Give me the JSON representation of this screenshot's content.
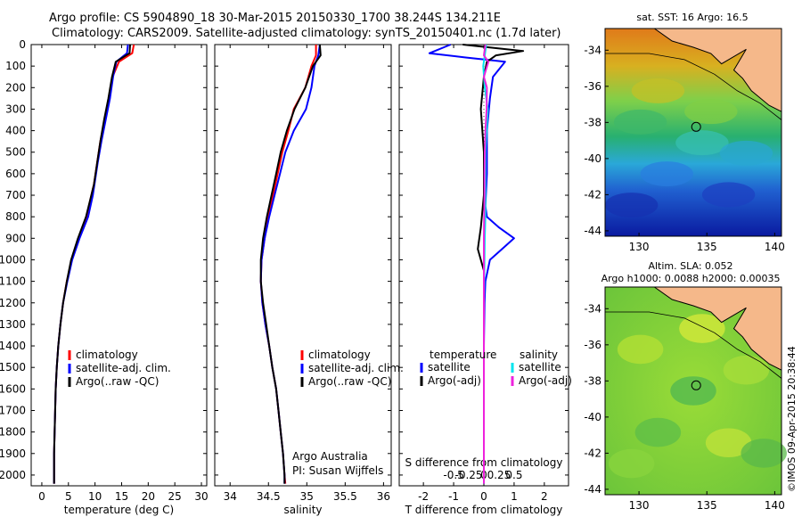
{
  "header": {
    "line1": "Argo profile: CS 5904890_18 30-Mar-2015 20150330_1700 38.244S 134.211E",
    "line2": "Climatology: CARS2009. Satellite-adjusted climatology: synTS_20150401.nc (1.7d later)"
  },
  "colors": {
    "climatology": "#ff0000",
    "satellite": "#0000ff",
    "argo": "#000000",
    "satellite_s": "#00e5ee",
    "argo_s": "#ee22dd",
    "land": "#f5b88a",
    "coast": "#000000"
  },
  "legend_a": {
    "items": [
      "climatology",
      "satellite-adj. clim.",
      "Argo(..raw -QC)"
    ]
  },
  "legend_c": {
    "temperature": "temperature",
    "salinity": "salinity",
    "t_items": [
      "satellite",
      "Argo(-adj)"
    ],
    "s_items": [
      "satellite",
      "Argo(-adj)"
    ]
  },
  "credit": {
    "line1": "Argo Australia",
    "line2": "PI: Susan Wijffels"
  },
  "map1": {
    "title": "sat. SST: 16 Argo: 16.5",
    "ylabels": [
      "-34",
      "-36",
      "-38",
      "-40",
      "-42",
      "-44"
    ],
    "xlabels": [
      "130",
      "135",
      "140"
    ]
  },
  "map2": {
    "title1": "Altim. SLA: 0.052",
    "title2": "Argo h1000: 0.0088 h2000: 0.00035",
    "ylabels": [
      "-34",
      "-36",
      "-38",
      "-40",
      "-42",
      "-44"
    ],
    "xlabels": [
      "130",
      "135",
      "140"
    ]
  },
  "watermark": "©IMOS 09-Apr-2015 20:38:44",
  "chart_data": [
    {
      "type": "line",
      "xlabel": "temperature (deg C)",
      "ylabel": "",
      "xlim": [
        -2,
        31
      ],
      "ylim": [
        2050,
        0
      ],
      "xticks": [
        "0",
        "5",
        "10",
        "15",
        "20",
        "25",
        "30"
      ],
      "yticks": [
        "0",
        "100",
        "200",
        "300",
        "400",
        "500",
        "600",
        "700",
        "800",
        "900",
        "1000",
        "1100",
        "1200",
        "1300",
        "1400",
        "1500",
        "1600",
        "1700",
        "1800",
        "1900",
        "2000"
      ],
      "series": [
        {
          "name": "climatology",
          "color": "#ff0000",
          "x": [
            17.3,
            17.0,
            14.5,
            13.3,
            12.6,
            11.8,
            11.0,
            10.4,
            9.8,
            9.3,
            8.4,
            6.9,
            5.6,
            4.7,
            4.0,
            3.5,
            3.1,
            2.8,
            2.6,
            2.5,
            2.4,
            2.3,
            2.3
          ],
          "y": [
            0,
            40,
            80,
            150,
            250,
            350,
            450,
            550,
            650,
            700,
            800,
            900,
            1000,
            1100,
            1200,
            1300,
            1400,
            1500,
            1600,
            1700,
            1800,
            1900,
            2040
          ]
        },
        {
          "name": "satellite-adj. clim.",
          "color": "#0000ff",
          "x": [
            16.2,
            16.0,
            14.0,
            13.4,
            12.8,
            12.0,
            11.2,
            10.5,
            9.9,
            9.6,
            8.7,
            7.1,
            5.7,
            4.8,
            4.0,
            3.5,
            3.1,
            2.8,
            2.6,
            2.5,
            2.4,
            2.3,
            2.3
          ],
          "y": [
            0,
            40,
            80,
            150,
            250,
            350,
            450,
            550,
            650,
            700,
            800,
            900,
            1000,
            1100,
            1200,
            1300,
            1400,
            1500,
            1600,
            1700,
            1800,
            1900,
            2040
          ]
        },
        {
          "name": "Argo(..raw -QC)",
          "color": "#000000",
          "x": [
            16.6,
            16.5,
            13.9,
            13.2,
            12.5,
            11.7,
            11.0,
            10.4,
            9.8,
            9.3,
            8.3,
            6.8,
            5.5,
            4.7,
            4.0,
            3.5,
            3.1,
            2.8,
            2.6,
            2.5,
            2.4,
            2.3,
            2.3
          ],
          "y": [
            0,
            40,
            80,
            150,
            250,
            350,
            450,
            550,
            650,
            700,
            800,
            900,
            1000,
            1100,
            1200,
            1300,
            1400,
            1500,
            1600,
            1700,
            1800,
            1900,
            2040
          ]
        }
      ]
    },
    {
      "type": "line",
      "xlabel": "salinity",
      "ylabel": "",
      "xlim": [
        33.8,
        36.1
      ],
      "ylim": [
        2050,
        0
      ],
      "xticks": [
        "34",
        "34.5",
        "35",
        "35.5",
        "36"
      ],
      "series": [
        {
          "name": "climatology",
          "color": "#ff0000",
          "x": [
            35.12,
            35.12,
            35.06,
            34.98,
            34.83,
            34.76,
            34.68,
            34.62,
            34.56,
            34.5,
            34.45,
            34.41,
            34.4,
            34.42,
            34.46,
            34.51,
            34.55,
            34.6,
            34.63,
            34.66,
            34.69,
            34.71,
            34.72
          ],
          "y": [
            0,
            50,
            100,
            200,
            300,
            400,
            500,
            600,
            700,
            800,
            900,
            1000,
            1100,
            1200,
            1300,
            1400,
            1500,
            1600,
            1700,
            1800,
            1900,
            2000,
            2040
          ]
        },
        {
          "name": "satellite-adj. clim.",
          "color": "#0000ff",
          "x": [
            35.17,
            35.15,
            35.1,
            35.06,
            34.99,
            34.83,
            34.72,
            34.65,
            34.58,
            34.51,
            34.45,
            34.41,
            34.4,
            34.42,
            34.46,
            34.51,
            34.55,
            34.6,
            34.63,
            34.66,
            34.69,
            34.71,
            34.71
          ],
          "y": [
            0,
            50,
            100,
            200,
            300,
            400,
            500,
            600,
            700,
            800,
            900,
            1000,
            1100,
            1200,
            1300,
            1400,
            1500,
            1600,
            1700,
            1800,
            1900,
            2000,
            2040
          ]
        },
        {
          "name": "Argo(..raw -QC)",
          "color": "#000000",
          "x": [
            35.17,
            35.18,
            35.08,
            34.98,
            34.84,
            34.74,
            34.66,
            34.6,
            34.54,
            34.48,
            34.43,
            34.4,
            34.4,
            34.43,
            34.47,
            34.51,
            34.55,
            34.6,
            34.63,
            34.66,
            34.69,
            34.71,
            34.71
          ],
          "y": [
            0,
            50,
            100,
            200,
            300,
            400,
            500,
            600,
            700,
            800,
            900,
            1000,
            1100,
            1200,
            1300,
            1400,
            1500,
            1600,
            1700,
            1800,
            1900,
            2000,
            2040
          ]
        }
      ]
    },
    {
      "type": "line",
      "xlabel": "T difference from climatology",
      "secondary_xlabel": "S difference from climatology",
      "xlim": [
        -2.8,
        2.8
      ],
      "ylim": [
        2050,
        0
      ],
      "xticks": [
        "-2",
        "-1",
        "0",
        "1",
        "2"
      ],
      "secondary_xticks": [
        "-0.5",
        "-0.25",
        "0",
        "0.25",
        "0.5"
      ],
      "series": [
        {
          "name": "T satellite",
          "color": "#0000ff",
          "x": [
            -1.1,
            -1.8,
            -0.6,
            0.7,
            0.3,
            0.2,
            0.1,
            0.1,
            0.05,
            0.1,
            0.5,
            1.0,
            0.6,
            0.2,
            0.05,
            0.02,
            0.0,
            0.0,
            0.0,
            0.0
          ],
          "y": [
            0,
            40,
            60,
            80,
            150,
            250,
            400,
            600,
            750,
            800,
            850,
            900,
            950,
            1000,
            1100,
            1200,
            1400,
            1600,
            1800,
            2040
          ]
        },
        {
          "name": "T Argo(-adj)",
          "color": "#000000",
          "x": [
            -0.7,
            1.3,
            0.4,
            0.1,
            0.0,
            -0.1,
            0.0,
            0.0,
            -0.1,
            -0.2,
            -0.1,
            0.0,
            0.0,
            0.0,
            0.0,
            0.0
          ],
          "y": [
            0,
            30,
            50,
            80,
            150,
            300,
            500,
            700,
            850,
            950,
            1000,
            1050,
            1200,
            1500,
            1800,
            2040
          ]
        },
        {
          "name": "S satellite",
          "color": "#00e5ee",
          "x": [
            0.08,
            0.03,
            -0.02,
            0.03,
            0.08,
            0.13,
            0.09,
            0.05,
            0.05,
            0.05,
            0.03,
            0.02,
            0.0,
            0.0,
            0.0
          ],
          "y": [
            0,
            50,
            100,
            200,
            250,
            300,
            400,
            500,
            600,
            800,
            900,
            1000,
            1200,
            1500,
            2040
          ]
        },
        {
          "name": "S Argo(-adj)",
          "color": "#ee22dd",
          "x": [
            0.05,
            0.0,
            0.15,
            0.0,
            0.1,
            0.09,
            0.05,
            0.03,
            0.02,
            0.02,
            0.01,
            0.0,
            0.0
          ],
          "y": [
            0,
            50,
            80,
            150,
            200,
            300,
            400,
            500,
            600,
            700,
            800,
            900,
            2040
          ]
        }
      ]
    }
  ]
}
